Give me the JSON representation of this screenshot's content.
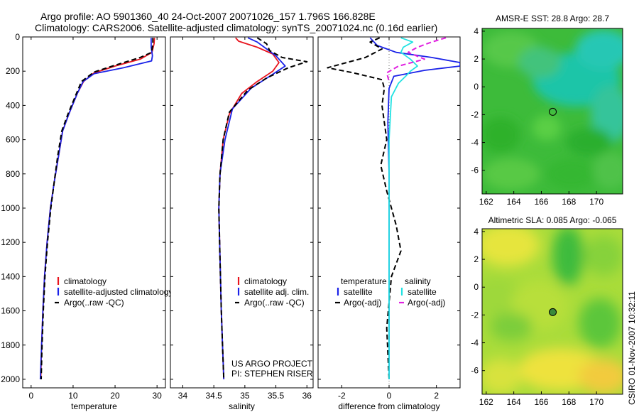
{
  "header": {
    "line1": "Argo profile: AO 5901360_40 24-Oct-2007 20071026_157 1.796S 166.828E",
    "line2": "Climatology: CARS2006. Satellite-adjusted climatology: synTS_20071024.nc (0.16d earlier)"
  },
  "colors": {
    "clim": "#e8141e",
    "sat": "#1a22e8",
    "argo": "#000000",
    "cyan": "#22e2e2",
    "magenta": "#e020e0"
  },
  "chart_data": [
    {
      "type": "line",
      "xlabel": "temperature",
      "ylabel": "",
      "xlim": [
        -2,
        32
      ],
      "ylim": [
        2050,
        0
      ],
      "xticks": [
        "0",
        "10",
        "20",
        "30"
      ],
      "xtick_values": [
        0,
        10,
        20,
        30
      ],
      "yticks": [
        "0",
        "200",
        "400",
        "600",
        "800",
        "1000",
        "1200",
        "1400",
        "1600",
        "1800",
        "2000"
      ],
      "ytick_values": [
        0,
        200,
        400,
        600,
        800,
        1000,
        1200,
        1400,
        1600,
        1800,
        2000
      ],
      "legend": {
        "position": "bottom-left",
        "entries": [
          {
            "label": "climatology",
            "series": "clim"
          },
          {
            "label": "satellite-adjusted climatology",
            "series": "sat"
          },
          {
            "label": "Argo(..raw -QC)",
            "series": "argo"
          }
        ]
      },
      "series": [
        {
          "id": "clim",
          "color": "#e8141e",
          "dash": false,
          "x": [
            29.4,
            29.3,
            28.8,
            26,
            20,
            15,
            12.5,
            11,
            9,
            7.5,
            6.5,
            5.5,
            4.6,
            3.8,
            3.2,
            2.8,
            2.5,
            2.3
          ],
          "y": [
            5,
            40,
            90,
            130,
            170,
            210,
            260,
            330,
            450,
            550,
            700,
            850,
            1000,
            1200,
            1400,
            1600,
            1800,
            2000
          ]
        },
        {
          "id": "sat",
          "color": "#1a22e8",
          "dash": false,
          "x": [
            28.6,
            28.6,
            28.9,
            28.7,
            22,
            15,
            12.4,
            11,
            9,
            7.5,
            6.5,
            5.5,
            4.6,
            3.8,
            3.2,
            2.8,
            2.5,
            2.2
          ],
          "y": [
            5,
            60,
            110,
            140,
            180,
            215,
            260,
            330,
            450,
            550,
            700,
            850,
            1000,
            1200,
            1400,
            1600,
            1800,
            2000
          ]
        },
        {
          "id": "argo",
          "color": "#000000",
          "dash": true,
          "x": [
            29.0,
            29.0,
            28.7,
            26,
            20,
            15,
            12,
            10.8,
            8.8,
            7.3,
            6.3,
            5.5,
            4.7,
            3.9,
            3.3,
            2.9,
            2.6,
            2.4
          ],
          "y": [
            5,
            40,
            90,
            120,
            165,
            205,
            260,
            330,
            450,
            550,
            700,
            850,
            1000,
            1200,
            1400,
            1600,
            1800,
            2000
          ]
        }
      ]
    },
    {
      "type": "line",
      "xlabel": "salinity",
      "ylabel": "",
      "xlim": [
        33.8,
        36.1
      ],
      "ylim": [
        2050,
        0
      ],
      "xticks": [
        "34",
        "34.5",
        "35",
        "35.5",
        "36"
      ],
      "xtick_values": [
        34,
        34.5,
        35,
        35.5,
        36
      ],
      "legend": {
        "position": "bottom-left",
        "entries": [
          {
            "label": "climatology",
            "series": "clim"
          },
          {
            "label": "satellite adj. clim.",
            "series": "sat"
          },
          {
            "label": "Argo(..raw -QC)",
            "series": "argo"
          }
        ]
      },
      "annotation": [
        "US ARGO PROJECT",
        "PI: STEPHEN RISER"
      ],
      "series": [
        {
          "id": "clim",
          "color": "#e8141e",
          "dash": false,
          "x": [
            34.85,
            34.9,
            35.2,
            35.45,
            35.55,
            35.45,
            35.2,
            34.95,
            34.75,
            34.65,
            34.6,
            34.58,
            34.6,
            34.62,
            34.64,
            34.66
          ],
          "y": [
            5,
            25,
            60,
            100,
            150,
            200,
            260,
            330,
            450,
            600,
            800,
            1000,
            1300,
            1600,
            1800,
            2000
          ]
        },
        {
          "id": "sat",
          "color": "#1a22e8",
          "dash": false,
          "x": [
            35.05,
            35.2,
            35.35,
            35.5,
            35.6,
            35.65,
            35.4,
            35.1,
            34.8,
            34.68,
            34.6,
            34.58,
            34.6,
            34.62,
            34.64,
            34.66
          ],
          "y": [
            5,
            30,
            70,
            110,
            150,
            170,
            230,
            300,
            420,
            600,
            800,
            1000,
            1300,
            1600,
            1800,
            2000
          ]
        },
        {
          "id": "argo",
          "color": "#000000",
          "dash": true,
          "x": [
            35.2,
            35.35,
            35.4,
            35.6,
            36.0,
            35.7,
            35.35,
            35.05,
            34.75,
            34.65,
            34.6,
            34.58,
            34.6,
            34.62,
            34.64,
            34.66
          ],
          "y": [
            5,
            40,
            80,
            120,
            145,
            180,
            240,
            310,
            440,
            600,
            800,
            1000,
            1300,
            1600,
            1800,
            2000
          ]
        }
      ]
    },
    {
      "type": "line",
      "xlabel": "difference from climatology",
      "ylabel": "",
      "xlim": [
        -3,
        3
      ],
      "ylim": [
        2050,
        0
      ],
      "xticks": [
        "-2",
        "0",
        "2"
      ],
      "xtick_values": [
        -2,
        0,
        2
      ],
      "legend": {
        "position": "bottom",
        "entries": [
          {
            "label": "temperature",
            "series": ""
          },
          {
            "label": "salinity",
            "series": ""
          },
          {
            "label": "satellite",
            "series": "t_sat"
          },
          {
            "label": "satellite",
            "series": "s_sat"
          },
          {
            "label": "Argo(-adj)",
            "series": "t_argo"
          },
          {
            "label": "Argo(-adj)",
            "series": "s_argo"
          }
        ]
      },
      "series": [
        {
          "id": "t_sat",
          "color": "#1a22e8",
          "dash": false,
          "x": [
            -0.8,
            -0.5,
            0.3,
            1.8,
            3.0,
            3.0,
            1.5,
            0.2,
            0.0,
            -0.05,
            0.0,
            0.0,
            0.0
          ],
          "y": [
            5,
            50,
            90,
            120,
            150,
            170,
            195,
            230,
            300,
            500,
            800,
            1400,
            2000
          ]
        },
        {
          "id": "t_argo",
          "color": "#000000",
          "dash": true,
          "x": [
            -0.4,
            -0.8,
            -0.3,
            -1.0,
            -2.6,
            -1.5,
            -0.3,
            -0.2,
            -0.3,
            -0.1,
            -0.35,
            -0.1,
            0.3,
            0.5,
            0.1,
            -0.1,
            0.0
          ],
          "y": [
            5,
            30,
            70,
            120,
            180,
            210,
            250,
            300,
            400,
            600,
            750,
            900,
            1100,
            1250,
            1400,
            1700,
            2000
          ]
        },
        {
          "id": "s_sat",
          "color": "#22e2e2",
          "dash": false,
          "x": [
            0.5,
            1.0,
            0.6,
            0.5,
            0.9,
            1.2,
            0.9,
            0.7,
            0.4,
            0.1,
            0.0,
            0.0,
            0.0
          ],
          "y": [
            5,
            30,
            60,
            90,
            130,
            170,
            200,
            230,
            270,
            350,
            600,
            1200,
            2000
          ]
        },
        {
          "id": "s_argo",
          "color": "#e020e0",
          "dash": true,
          "x": [
            2.4,
            1.8,
            1.2,
            0.8,
            1.5,
            0.4,
            -0.1,
            0.0
          ],
          "y": [
            5,
            30,
            60,
            90,
            130,
            170,
            210,
            260
          ]
        }
      ]
    },
    {
      "type": "heatmap",
      "title": "AMSR-E SST: 28.8 Argo: 28.7",
      "xlim": [
        161.7,
        171.9
      ],
      "ylim": [
        -7.7,
        4.2
      ],
      "xticks": [
        "162",
        "164",
        "166",
        "168",
        "170"
      ],
      "xtick_values": [
        162,
        164,
        166,
        168,
        170
      ],
      "yticks": [
        "4",
        "2",
        "0",
        "-2",
        "-4",
        "-6"
      ],
      "ytick_values": [
        4,
        2,
        0,
        -2,
        -4,
        -6
      ],
      "marker": {
        "lon": 166.828,
        "lat": -1.796,
        "filled": false
      }
    },
    {
      "type": "heatmap",
      "title": "Altimetric SLA: 0.085 Argo: -0.065",
      "xlim": [
        161.7,
        171.9
      ],
      "ylim": [
        -7.7,
        4.2
      ],
      "xticks": [
        "162",
        "164",
        "166",
        "168",
        "170"
      ],
      "xtick_values": [
        162,
        164,
        166,
        168,
        170
      ],
      "yticks": [
        "4",
        "2",
        "0",
        "-2",
        "-4",
        "-6"
      ],
      "ytick_values": [
        4,
        2,
        0,
        -2,
        -4,
        -6
      ],
      "marker": {
        "lon": 166.828,
        "lat": -1.796,
        "filled": true
      }
    }
  ],
  "stamp": "CSIRO 01-Nov-2007 10:32:11"
}
